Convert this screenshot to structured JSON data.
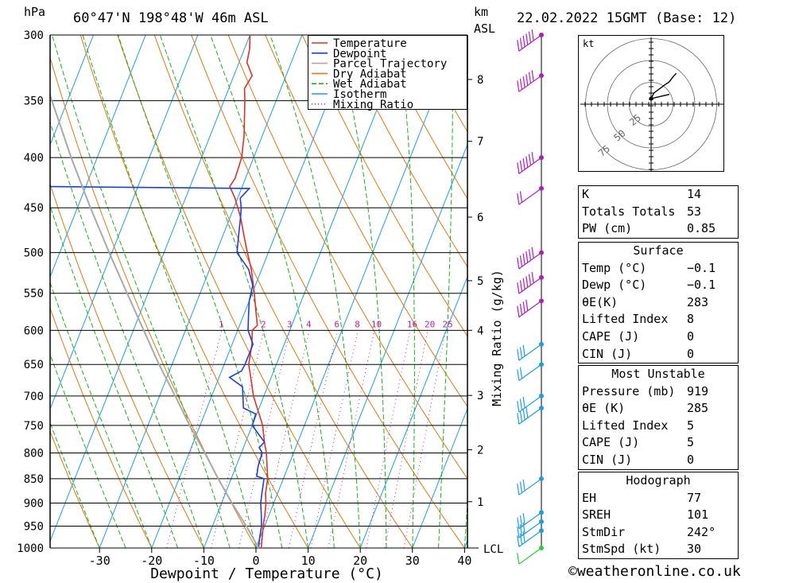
{
  "header": {
    "pressure_unit": "hPa",
    "location": "60°47'N  198°48'W  46m  ASL",
    "height_unit_top": "km",
    "height_unit_bottom": "ASL",
    "datetime": "22.02.2022  15GMT  (Base: 12)"
  },
  "footer": {
    "credit": "©weatheronline.co.uk"
  },
  "chart_data": {
    "type": "line",
    "title": "",
    "xlabel": "Dewpoint / Temperature (°C)",
    "ylabel": "hPa",
    "right_axis_label": "Mixing Ratio (g/kg)",
    "lcl_label": "LCL",
    "pressure_levels": [
      300,
      350,
      400,
      450,
      500,
      550,
      600,
      650,
      700,
      750,
      800,
      850,
      900,
      950,
      1000
    ],
    "pressure_range": [
      300,
      1000
    ],
    "x_ticks": [
      -30,
      -20,
      -10,
      0,
      10,
      20,
      30,
      40
    ],
    "height_ticks_km": [
      {
        "km": "1",
        "p": 897
      },
      {
        "km": "2",
        "p": 794
      },
      {
        "km": "3",
        "p": 699
      },
      {
        "km": "4",
        "p": 600
      },
      {
        "km": "5",
        "p": 534
      },
      {
        "km": "6",
        "p": 460
      },
      {
        "km": "7",
        "p": 385
      },
      {
        "km": "8",
        "p": 333
      }
    ],
    "mixing_ratio_labels": [
      "1",
      "2",
      "3",
      "4",
      "6",
      "8",
      "10",
      "16",
      "20",
      "25"
    ],
    "legend": [
      "Temperature",
      "Dewpoint",
      "Parcel Trajectory",
      "Dry Adiabat",
      "Wet Adiabat",
      "Isotherm",
      "Mixing Ratio"
    ],
    "legend_position": "top-right",
    "colors": {
      "temperature": "#e0302a",
      "dewpoint": "#1f3fd6",
      "parcel": "#a9a9a9",
      "dry_adiabat": "#e07810",
      "wet_adiabat": "#19b219",
      "isotherm": "#1a9fe6",
      "mixing_ratio": "#cc1aa0",
      "wind_barb": "#b01cc0"
    },
    "series": [
      {
        "name": "Temperature",
        "points": [
          [
            1000,
            1.0
          ],
          [
            980,
            0.5
          ],
          [
            950,
            -0.3
          ],
          [
            925,
            -0.8
          ],
          [
            900,
            -1.5
          ],
          [
            880,
            -2.3
          ],
          [
            850,
            -3.0
          ],
          [
            800,
            -5.2
          ],
          [
            780,
            -6.4
          ],
          [
            750,
            -8.0
          ],
          [
            700,
            -12.0
          ],
          [
            660,
            -14.6
          ],
          [
            650,
            -15.3
          ],
          [
            620,
            -16.2
          ],
          [
            600,
            -17.2
          ],
          [
            593,
            -16.6
          ],
          [
            570,
            -18.2
          ],
          [
            550,
            -19.6
          ],
          [
            520,
            -22.0
          ],
          [
            500,
            -24.0
          ],
          [
            480,
            -26.0
          ],
          [
            460,
            -28.0
          ],
          [
            440,
            -30.5
          ],
          [
            428,
            -32.4
          ],
          [
            420,
            -32.0
          ],
          [
            400,
            -32.3
          ],
          [
            380,
            -33.5
          ],
          [
            350,
            -36.0
          ],
          [
            340,
            -37.0
          ],
          [
            330,
            -36.5
          ],
          [
            320,
            -38.5
          ],
          [
            310,
            -39.0
          ],
          [
            300,
            -40.0
          ]
        ]
      },
      {
        "name": "Dewpoint",
        "points": [
          [
            1000,
            0.5
          ],
          [
            980,
            0.0
          ],
          [
            950,
            -0.6
          ],
          [
            925,
            -1.5
          ],
          [
            900,
            -2.5
          ],
          [
            880,
            -3.0
          ],
          [
            850,
            -3.7
          ],
          [
            845,
            -5.3
          ],
          [
            825,
            -5.8
          ],
          [
            800,
            -6.0
          ],
          [
            790,
            -7.0
          ],
          [
            780,
            -6.4
          ],
          [
            750,
            -10.0
          ],
          [
            730,
            -10.2
          ],
          [
            720,
            -13.0
          ],
          [
            700,
            -14.0
          ],
          [
            685,
            -14.8
          ],
          [
            670,
            -18.0
          ],
          [
            660,
            -16.2
          ],
          [
            650,
            -16.0
          ],
          [
            620,
            -16.0
          ],
          [
            600,
            -18.0
          ],
          [
            580,
            -19.0
          ],
          [
            560,
            -20.0
          ],
          [
            540,
            -20.5
          ],
          [
            520,
            -22.5
          ],
          [
            500,
            -26.0
          ],
          [
            480,
            -27.0
          ],
          [
            460,
            -28.0
          ],
          [
            450,
            -28.6
          ],
          [
            440,
            -29.5
          ],
          [
            430,
            -28.5
          ],
          [
            428,
            -70.0
          ],
          [
            405,
            -80.0
          ],
          [
            350,
            -90.0
          ],
          [
            320,
            -90.0
          ],
          [
            300,
            -90.0
          ]
        ]
      },
      {
        "name": "Parcel Trajectory",
        "points": [
          [
            1000,
            0.5
          ],
          [
            950,
            -3.5
          ],
          [
            900,
            -8.0
          ],
          [
            850,
            -12.5
          ],
          [
            800,
            -17.0
          ],
          [
            750,
            -22.0
          ],
          [
            700,
            -27.0
          ],
          [
            650,
            -32.5
          ],
          [
            600,
            -38.0
          ],
          [
            550,
            -44.0
          ],
          [
            500,
            -50.5
          ],
          [
            450,
            -57.5
          ],
          [
            400,
            -65.0
          ],
          [
            350,
            -73.0
          ],
          [
            300,
            -82.0
          ]
        ]
      }
    ],
    "wind_barbs": [
      {
        "p": 300,
        "kt": 65
      },
      {
        "p": 330,
        "kt": 60
      },
      {
        "p": 400,
        "kt": 65
      },
      {
        "p": 430,
        "kt": 15
      },
      {
        "p": 500,
        "kt": 60
      },
      {
        "p": 530,
        "kt": 55
      },
      {
        "p": 560,
        "kt": 35
      },
      {
        "p": 620,
        "kt": 25
      },
      {
        "p": 650,
        "kt": 20
      },
      {
        "p": 700,
        "kt": 30
      },
      {
        "p": 720,
        "kt": 35
      },
      {
        "p": 850,
        "kt": 30
      },
      {
        "p": 920,
        "kt": 30
      },
      {
        "p": 940,
        "kt": 30
      },
      {
        "p": 960,
        "kt": 30
      },
      {
        "p": 1000,
        "kt": 10
      }
    ],
    "hodograph": {
      "unit_label": "kt",
      "ring_labels": [
        "25",
        "50",
        "75"
      ],
      "points_uv": [
        [
          0,
          4
        ],
        [
          2,
          8
        ],
        [
          10,
          14
        ],
        [
          13,
          16
        ],
        [
          16,
          20
        ],
        [
          18,
          22
        ]
      ],
      "storm_motion_uv": [
        [
          0,
          4
        ],
        [
          13,
          7
        ]
      ]
    }
  },
  "indices": {
    "basic": [
      {
        "label": "K",
        "value": "14"
      },
      {
        "label": "Totals Totals",
        "value": "53"
      },
      {
        "label": "PW (cm)",
        "value": "0.85"
      }
    ],
    "surface_title": "Surface",
    "surface": [
      {
        "label": "Temp (°C)",
        "value": "−0.1"
      },
      {
        "label": "Dewp (°C)",
        "value": "−0.1"
      },
      {
        "label": "θE(K)",
        "value": "283"
      },
      {
        "label": "Lifted Index",
        "value": "8"
      },
      {
        "label": "CAPE (J)",
        "value": "0"
      },
      {
        "label": "CIN (J)",
        "value": "0"
      }
    ],
    "unstable_title": "Most Unstable",
    "unstable": [
      {
        "label": "Pressure (mb)",
        "value": "919"
      },
      {
        "label": "θE (K)",
        "value": "285"
      },
      {
        "label": "Lifted Index",
        "value": "5"
      },
      {
        "label": "CAPE (J)",
        "value": "5"
      },
      {
        "label": "CIN (J)",
        "value": "0"
      }
    ],
    "hodograph_title": "Hodograph",
    "hodograph": [
      {
        "label": "EH",
        "value": "77"
      },
      {
        "label": "SREH",
        "value": "101"
      },
      {
        "label": "StmDir",
        "value": "242°"
      },
      {
        "label": "StmSpd (kt)",
        "value": "30"
      }
    ]
  }
}
